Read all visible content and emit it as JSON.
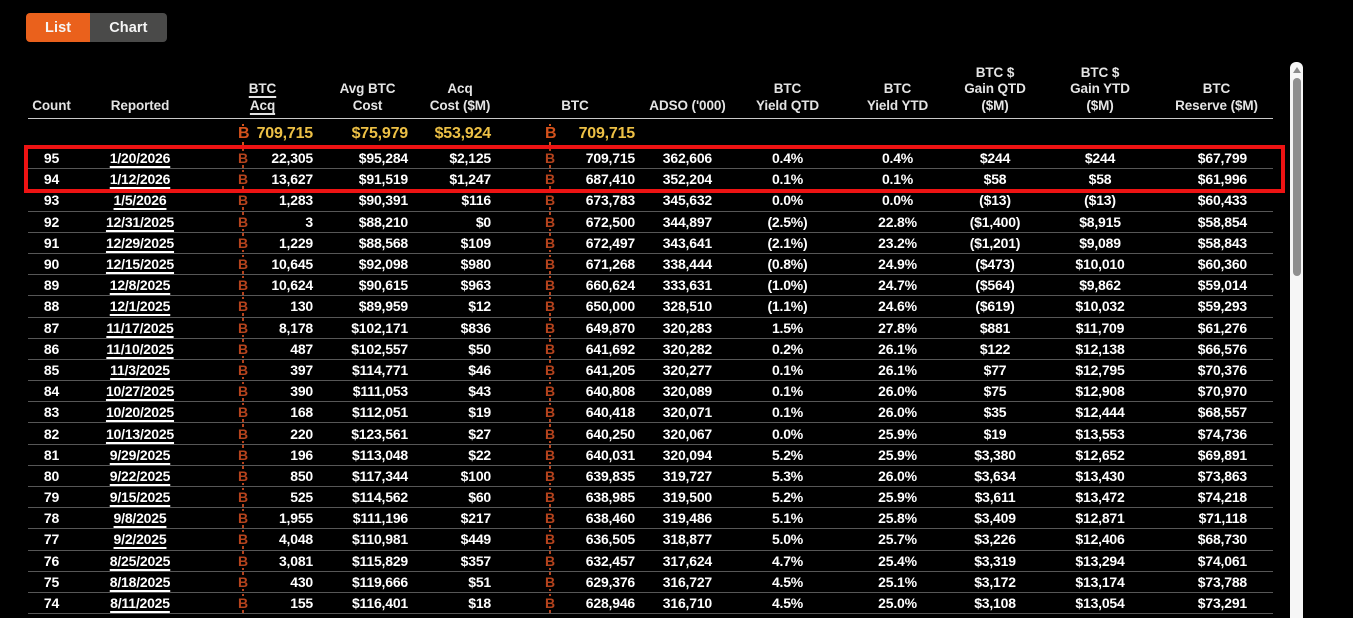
{
  "tabs": {
    "list": "List",
    "chart": "Chart"
  },
  "colors": {
    "accent": "#ea611c",
    "tab_gray": "#4a4a49",
    "gold": "#edc045",
    "btc_symbol": "#b5431d",
    "btc_symbol_bright": "#d4521c",
    "highlight_red": "#ee1313"
  },
  "table": {
    "columns": [
      {
        "key": "count",
        "lines": [
          "Count"
        ]
      },
      {
        "key": "reported",
        "lines": [
          "Reported"
        ],
        "link": true
      },
      {
        "key": "btc_acq",
        "lines": [
          "BTC",
          "Acq"
        ],
        "underline": true,
        "btc": true
      },
      {
        "key": "avg_btc_cost",
        "lines": [
          "Avg BTC",
          "Cost"
        ]
      },
      {
        "key": "acq_cost_m",
        "lines": [
          "Acq",
          "Cost ($M)"
        ]
      },
      {
        "key": "btc",
        "lines": [
          "BTC"
        ],
        "btc": true
      },
      {
        "key": "adso",
        "lines": [
          "ADSO ('000)"
        ]
      },
      {
        "key": "btc_yield_qtd",
        "lines": [
          "BTC",
          "Yield QTD"
        ]
      },
      {
        "key": "btc_yield_ytd",
        "lines": [
          "BTC",
          "Yield YTD"
        ]
      },
      {
        "key": "btc_gain_qtd",
        "lines": [
          "BTC $",
          "Gain QTD",
          "($M)"
        ]
      },
      {
        "key": "btc_gain_ytd",
        "lines": [
          "BTC $",
          "Gain YTD",
          "($M)"
        ]
      },
      {
        "key": "btc_reserve",
        "lines": [
          "BTC",
          "Reserve ($M)"
        ]
      }
    ],
    "totals": {
      "btc_acq": "709,715",
      "avg_btc_cost": "$75,979",
      "acq_cost_m": "$53,924",
      "btc": "709,715"
    },
    "highlight_rows": [
      "95",
      "94"
    ],
    "rows": [
      {
        "count": "95",
        "reported": "1/20/2026",
        "btc_acq": "22,305",
        "avg_btc_cost": "$95,284",
        "acq_cost_m": "$2,125",
        "btc": "709,715",
        "adso": "362,606",
        "btc_yield_qtd": "0.4%",
        "btc_yield_ytd": "0.4%",
        "btc_gain_qtd": "$244",
        "btc_gain_ytd": "$244",
        "btc_reserve": "$67,799"
      },
      {
        "count": "94",
        "reported": "1/12/2026",
        "btc_acq": "13,627",
        "avg_btc_cost": "$91,519",
        "acq_cost_m": "$1,247",
        "btc": "687,410",
        "adso": "352,204",
        "btc_yield_qtd": "0.1%",
        "btc_yield_ytd": "0.1%",
        "btc_gain_qtd": "$58",
        "btc_gain_ytd": "$58",
        "btc_reserve": "$61,996"
      },
      {
        "count": "93",
        "reported": "1/5/2026",
        "btc_acq": "1,283",
        "avg_btc_cost": "$90,391",
        "acq_cost_m": "$116",
        "btc": "673,783",
        "adso": "345,632",
        "btc_yield_qtd": "0.0%",
        "btc_yield_ytd": "0.0%",
        "btc_gain_qtd": "($13)",
        "btc_gain_ytd": "($13)",
        "btc_reserve": "$60,433"
      },
      {
        "count": "92",
        "reported": "12/31/2025",
        "btc_acq": "3",
        "avg_btc_cost": "$88,210",
        "acq_cost_m": "$0",
        "btc": "672,500",
        "adso": "344,897",
        "btc_yield_qtd": "(2.5%)",
        "btc_yield_ytd": "22.8%",
        "btc_gain_qtd": "($1,400)",
        "btc_gain_ytd": "$8,915",
        "btc_reserve": "$58,854"
      },
      {
        "count": "91",
        "reported": "12/29/2025",
        "btc_acq": "1,229",
        "avg_btc_cost": "$88,568",
        "acq_cost_m": "$109",
        "btc": "672,497",
        "adso": "343,641",
        "btc_yield_qtd": "(2.1%)",
        "btc_yield_ytd": "23.2%",
        "btc_gain_qtd": "($1,201)",
        "btc_gain_ytd": "$9,089",
        "btc_reserve": "$58,843"
      },
      {
        "count": "90",
        "reported": "12/15/2025",
        "btc_acq": "10,645",
        "avg_btc_cost": "$92,098",
        "acq_cost_m": "$980",
        "btc": "671,268",
        "adso": "338,444",
        "btc_yield_qtd": "(0.8%)",
        "btc_yield_ytd": "24.9%",
        "btc_gain_qtd": "($473)",
        "btc_gain_ytd": "$10,010",
        "btc_reserve": "$60,360"
      },
      {
        "count": "89",
        "reported": "12/8/2025",
        "btc_acq": "10,624",
        "avg_btc_cost": "$90,615",
        "acq_cost_m": "$963",
        "btc": "660,624",
        "adso": "333,631",
        "btc_yield_qtd": "(1.0%)",
        "btc_yield_ytd": "24.7%",
        "btc_gain_qtd": "($564)",
        "btc_gain_ytd": "$9,862",
        "btc_reserve": "$59,014"
      },
      {
        "count": "88",
        "reported": "12/1/2025",
        "btc_acq": "130",
        "avg_btc_cost": "$89,959",
        "acq_cost_m": "$12",
        "btc": "650,000",
        "adso": "328,510",
        "btc_yield_qtd": "(1.1%)",
        "btc_yield_ytd": "24.6%",
        "btc_gain_qtd": "($619)",
        "btc_gain_ytd": "$10,032",
        "btc_reserve": "$59,293"
      },
      {
        "count": "87",
        "reported": "11/17/2025",
        "btc_acq": "8,178",
        "avg_btc_cost": "$102,171",
        "acq_cost_m": "$836",
        "btc": "649,870",
        "adso": "320,283",
        "btc_yield_qtd": "1.5%",
        "btc_yield_ytd": "27.8%",
        "btc_gain_qtd": "$881",
        "btc_gain_ytd": "$11,709",
        "btc_reserve": "$61,276"
      },
      {
        "count": "86",
        "reported": "11/10/2025",
        "btc_acq": "487",
        "avg_btc_cost": "$102,557",
        "acq_cost_m": "$50",
        "btc": "641,692",
        "adso": "320,282",
        "btc_yield_qtd": "0.2%",
        "btc_yield_ytd": "26.1%",
        "btc_gain_qtd": "$122",
        "btc_gain_ytd": "$12,138",
        "btc_reserve": "$66,576"
      },
      {
        "count": "85",
        "reported": "11/3/2025",
        "btc_acq": "397",
        "avg_btc_cost": "$114,771",
        "acq_cost_m": "$46",
        "btc": "641,205",
        "adso": "320,277",
        "btc_yield_qtd": "0.1%",
        "btc_yield_ytd": "26.1%",
        "btc_gain_qtd": "$77",
        "btc_gain_ytd": "$12,795",
        "btc_reserve": "$70,376"
      },
      {
        "count": "84",
        "reported": "10/27/2025",
        "btc_acq": "390",
        "avg_btc_cost": "$111,053",
        "acq_cost_m": "$43",
        "btc": "640,808",
        "adso": "320,089",
        "btc_yield_qtd": "0.1%",
        "btc_yield_ytd": "26.0%",
        "btc_gain_qtd": "$75",
        "btc_gain_ytd": "$12,908",
        "btc_reserve": "$70,970"
      },
      {
        "count": "83",
        "reported": "10/20/2025",
        "btc_acq": "168",
        "avg_btc_cost": "$112,051",
        "acq_cost_m": "$19",
        "btc": "640,418",
        "adso": "320,071",
        "btc_yield_qtd": "0.1%",
        "btc_yield_ytd": "26.0%",
        "btc_gain_qtd": "$35",
        "btc_gain_ytd": "$12,444",
        "btc_reserve": "$68,557"
      },
      {
        "count": "82",
        "reported": "10/13/2025",
        "btc_acq": "220",
        "avg_btc_cost": "$123,561",
        "acq_cost_m": "$27",
        "btc": "640,250",
        "adso": "320,067",
        "btc_yield_qtd": "0.0%",
        "btc_yield_ytd": "25.9%",
        "btc_gain_qtd": "$19",
        "btc_gain_ytd": "$13,553",
        "btc_reserve": "$74,736"
      },
      {
        "count": "81",
        "reported": "9/29/2025",
        "btc_acq": "196",
        "avg_btc_cost": "$113,048",
        "acq_cost_m": "$22",
        "btc": "640,031",
        "adso": "320,094",
        "btc_yield_qtd": "5.2%",
        "btc_yield_ytd": "25.9%",
        "btc_gain_qtd": "$3,380",
        "btc_gain_ytd": "$12,652",
        "btc_reserve": "$69,891"
      },
      {
        "count": "80",
        "reported": "9/22/2025",
        "btc_acq": "850",
        "avg_btc_cost": "$117,344",
        "acq_cost_m": "$100",
        "btc": "639,835",
        "adso": "319,727",
        "btc_yield_qtd": "5.3%",
        "btc_yield_ytd": "26.0%",
        "btc_gain_qtd": "$3,634",
        "btc_gain_ytd": "$13,430",
        "btc_reserve": "$73,863"
      },
      {
        "count": "79",
        "reported": "9/15/2025",
        "btc_acq": "525",
        "avg_btc_cost": "$114,562",
        "acq_cost_m": "$60",
        "btc": "638,985",
        "adso": "319,500",
        "btc_yield_qtd": "5.2%",
        "btc_yield_ytd": "25.9%",
        "btc_gain_qtd": "$3,611",
        "btc_gain_ytd": "$13,472",
        "btc_reserve": "$74,218"
      },
      {
        "count": "78",
        "reported": "9/8/2025",
        "btc_acq": "1,955",
        "avg_btc_cost": "$111,196",
        "acq_cost_m": "$217",
        "btc": "638,460",
        "adso": "319,486",
        "btc_yield_qtd": "5.1%",
        "btc_yield_ytd": "25.8%",
        "btc_gain_qtd": "$3,409",
        "btc_gain_ytd": "$12,871",
        "btc_reserve": "$71,118"
      },
      {
        "count": "77",
        "reported": "9/2/2025",
        "btc_acq": "4,048",
        "avg_btc_cost": "$110,981",
        "acq_cost_m": "$449",
        "btc": "636,505",
        "adso": "318,877",
        "btc_yield_qtd": "5.0%",
        "btc_yield_ytd": "25.7%",
        "btc_gain_qtd": "$3,226",
        "btc_gain_ytd": "$12,406",
        "btc_reserve": "$68,730"
      },
      {
        "count": "76",
        "reported": "8/25/2025",
        "btc_acq": "3,081",
        "avg_btc_cost": "$115,829",
        "acq_cost_m": "$357",
        "btc": "632,457",
        "adso": "317,624",
        "btc_yield_qtd": "4.7%",
        "btc_yield_ytd": "25.4%",
        "btc_gain_qtd": "$3,319",
        "btc_gain_ytd": "$13,294",
        "btc_reserve": "$74,061"
      },
      {
        "count": "75",
        "reported": "8/18/2025",
        "btc_acq": "430",
        "avg_btc_cost": "$119,666",
        "acq_cost_m": "$51",
        "btc": "629,376",
        "adso": "316,727",
        "btc_yield_qtd": "4.5%",
        "btc_yield_ytd": "25.1%",
        "btc_gain_qtd": "$3,172",
        "btc_gain_ytd": "$13,174",
        "btc_reserve": "$73,788"
      },
      {
        "count": "74",
        "reported": "8/11/2025",
        "btc_acq": "155",
        "avg_btc_cost": "$116,401",
        "acq_cost_m": "$18",
        "btc": "628,946",
        "adso": "316,710",
        "btc_yield_qtd": "4.5%",
        "btc_yield_ytd": "25.0%",
        "btc_gain_qtd": "$3,108",
        "btc_gain_ytd": "$13,054",
        "btc_reserve": "$73,291"
      }
    ]
  }
}
